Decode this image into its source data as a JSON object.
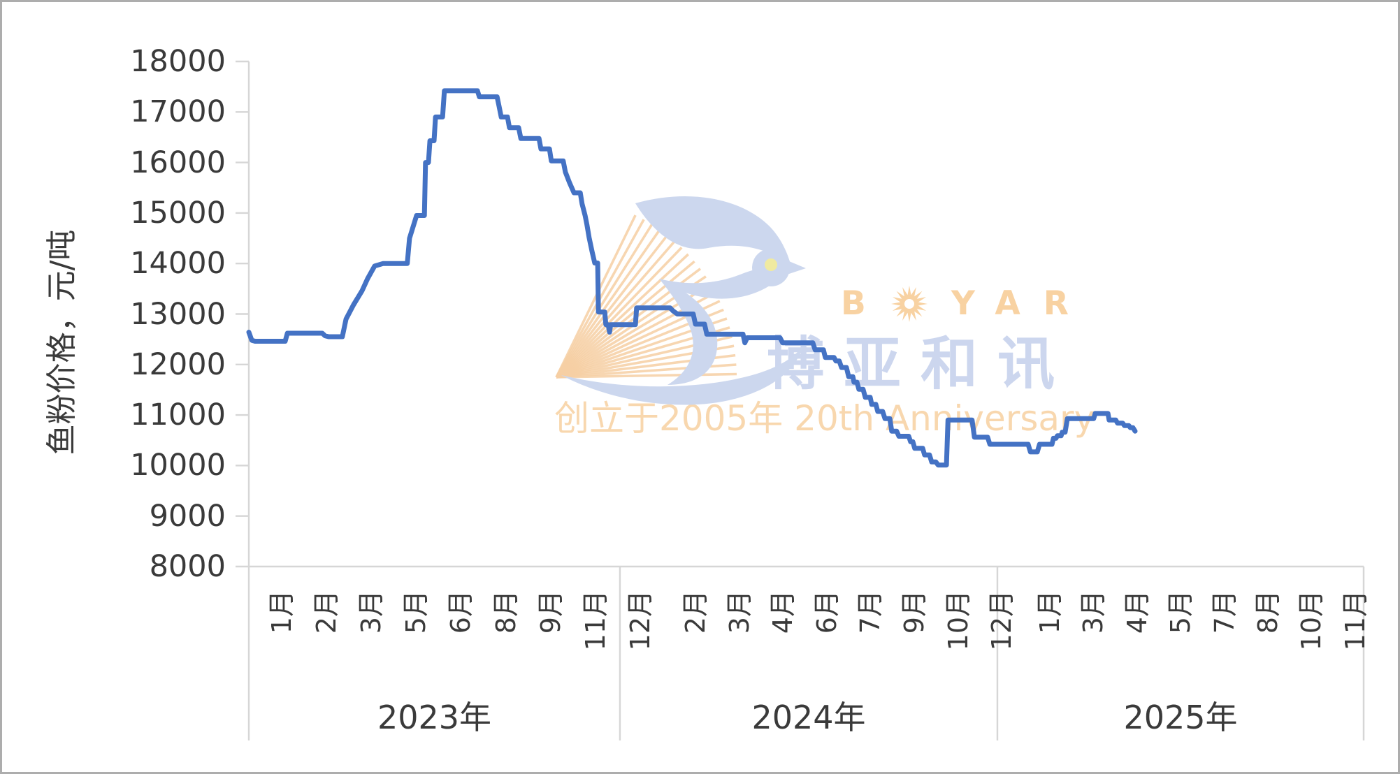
{
  "chart_data": {
    "type": "line",
    "title": "",
    "ylabel": "鱼粉价格，元/吨",
    "ylim": [
      8000,
      18000
    ],
    "y_ticks": [
      18000,
      17000,
      16000,
      15000,
      14000,
      13000,
      12000,
      11000,
      10000,
      9000,
      8000
    ],
    "grid": "none",
    "legend": "none",
    "x_axis_note": "weekly price series, Jan 2023 - May 2025; category axis grouped by year",
    "years": [
      {
        "label": "2023年",
        "month_labels": [
          "1月",
          "2月",
          "3月",
          "5月",
          "6月",
          "8月",
          "9月",
          "11月",
          "12月"
        ],
        "points": [
          [
            0.0,
            12640
          ],
          [
            0.008,
            12480
          ],
          [
            0.017,
            12460
          ],
          [
            0.098,
            12460
          ],
          [
            0.104,
            12620
          ],
          [
            0.198,
            12620
          ],
          [
            0.205,
            12570
          ],
          [
            0.215,
            12550
          ],
          [
            0.252,
            12550
          ],
          [
            0.262,
            12900
          ],
          [
            0.282,
            13180
          ],
          [
            0.305,
            13460
          ],
          [
            0.32,
            13700
          ],
          [
            0.339,
            13950
          ],
          [
            0.362,
            14000
          ],
          [
            0.427,
            14000
          ],
          [
            0.433,
            14500
          ],
          [
            0.452,
            14950
          ],
          [
            0.473,
            14950
          ],
          [
            0.476,
            16000
          ],
          [
            0.484,
            16000
          ],
          [
            0.488,
            16430
          ],
          [
            0.499,
            16430
          ],
          [
            0.503,
            16900
          ],
          [
            0.522,
            16900
          ],
          [
            0.527,
            17420
          ],
          [
            0.616,
            17420
          ],
          [
            0.621,
            17300
          ],
          [
            0.669,
            17300
          ],
          [
            0.674,
            17120
          ],
          [
            0.68,
            16900
          ],
          [
            0.697,
            16900
          ],
          [
            0.702,
            16690
          ],
          [
            0.727,
            16690
          ],
          [
            0.733,
            16475
          ],
          [
            0.782,
            16475
          ],
          [
            0.787,
            16270
          ],
          [
            0.81,
            16270
          ],
          [
            0.815,
            16030
          ],
          [
            0.847,
            16030
          ],
          [
            0.853,
            15810
          ],
          [
            0.864,
            15600
          ],
          [
            0.876,
            15400
          ],
          [
            0.893,
            15400
          ],
          [
            0.898,
            15180
          ],
          [
            0.906,
            14950
          ],
          [
            0.911,
            14770
          ],
          [
            0.917,
            14510
          ],
          [
            0.925,
            14230
          ],
          [
            0.932,
            14010
          ],
          [
            0.94,
            14010
          ],
          [
            0.942,
            13040
          ],
          [
            0.959,
            13040
          ],
          [
            0.962,
            12790
          ],
          [
            0.968,
            12790
          ],
          [
            0.972,
            12640
          ],
          [
            0.975,
            12790
          ],
          [
            1.0,
            12790
          ]
        ]
      },
      {
        "label": "2024年",
        "month_labels": [
          "2月",
          "3月",
          "4月",
          "6月",
          "7月",
          "9月",
          "10月",
          "12月"
        ],
        "points": [
          [
            0.0,
            12790
          ],
          [
            0.041,
            12790
          ],
          [
            0.044,
            13120
          ],
          [
            0.133,
            13120
          ],
          [
            0.141,
            13060
          ],
          [
            0.152,
            13000
          ],
          [
            0.194,
            13000
          ],
          [
            0.2,
            12800
          ],
          [
            0.224,
            12800
          ],
          [
            0.23,
            12600
          ],
          [
            0.326,
            12600
          ],
          [
            0.331,
            12430
          ],
          [
            0.337,
            12530
          ],
          [
            0.424,
            12530
          ],
          [
            0.431,
            12430
          ],
          [
            0.511,
            12430
          ],
          [
            0.517,
            12290
          ],
          [
            0.539,
            12290
          ],
          [
            0.544,
            12140
          ],
          [
            0.567,
            12140
          ],
          [
            0.572,
            12070
          ],
          [
            0.581,
            12070
          ],
          [
            0.587,
            11940
          ],
          [
            0.6,
            11940
          ],
          [
            0.606,
            11760
          ],
          [
            0.617,
            11760
          ],
          [
            0.62,
            11650
          ],
          [
            0.628,
            11650
          ],
          [
            0.633,
            11510
          ],
          [
            0.644,
            11510
          ],
          [
            0.65,
            11350
          ],
          [
            0.663,
            11350
          ],
          [
            0.667,
            11210
          ],
          [
            0.678,
            11210
          ],
          [
            0.683,
            11070
          ],
          [
            0.696,
            11070
          ],
          [
            0.702,
            10930
          ],
          [
            0.715,
            10930
          ],
          [
            0.72,
            10680
          ],
          [
            0.733,
            10680
          ],
          [
            0.739,
            10580
          ],
          [
            0.765,
            10580
          ],
          [
            0.77,
            10470
          ],
          [
            0.776,
            10470
          ],
          [
            0.781,
            10340
          ],
          [
            0.802,
            10340
          ],
          [
            0.807,
            10210
          ],
          [
            0.82,
            10210
          ],
          [
            0.826,
            10070
          ],
          [
            0.837,
            10070
          ],
          [
            0.843,
            10010
          ],
          [
            0.865,
            10010
          ],
          [
            0.869,
            10900
          ],
          [
            0.933,
            10900
          ],
          [
            0.939,
            10560
          ],
          [
            0.974,
            10560
          ],
          [
            0.98,
            10420
          ],
          [
            1.0,
            10420
          ]
        ]
      },
      {
        "label": "2025年",
        "month_labels": [
          "1月",
          "3月",
          "4月",
          "5月",
          "7月",
          "8月",
          "10月",
          "11月"
        ],
        "points": [
          [
            0.0,
            10420
          ],
          [
            0.084,
            10420
          ],
          [
            0.09,
            10270
          ],
          [
            0.109,
            10270
          ],
          [
            0.115,
            10420
          ],
          [
            0.149,
            10420
          ],
          [
            0.153,
            10540
          ],
          [
            0.16,
            10540
          ],
          [
            0.164,
            10590
          ],
          [
            0.174,
            10590
          ],
          [
            0.177,
            10660
          ],
          [
            0.185,
            10660
          ],
          [
            0.191,
            10930
          ],
          [
            0.263,
            10930
          ],
          [
            0.267,
            11030
          ],
          [
            0.302,
            11030
          ],
          [
            0.305,
            10900
          ],
          [
            0.323,
            10900
          ],
          [
            0.328,
            10840
          ],
          [
            0.342,
            10840
          ],
          [
            0.347,
            10790
          ],
          [
            0.359,
            10790
          ],
          [
            0.363,
            10750
          ],
          [
            0.37,
            10750
          ],
          [
            0.376,
            10680
          ]
        ]
      }
    ]
  },
  "watermark": {
    "brand_b": "B",
    "brand_rest": "YAR",
    "brand_full": "BOYAR",
    "cn": "博亚和讯",
    "anniversary": "创立于2005年 20th Anniversary"
  },
  "colors": {
    "line": "#4472c4",
    "axis": "#d6d6d6",
    "text": "#3a3a3a",
    "watermark_bird": "#ccd7ee",
    "watermark_hatch": "#f6cfa4",
    "watermark_orange_text": "#f8d2a2",
    "watermark_cn_text": "#ccd6ee",
    "bird_eye": "#f0eaa0"
  }
}
